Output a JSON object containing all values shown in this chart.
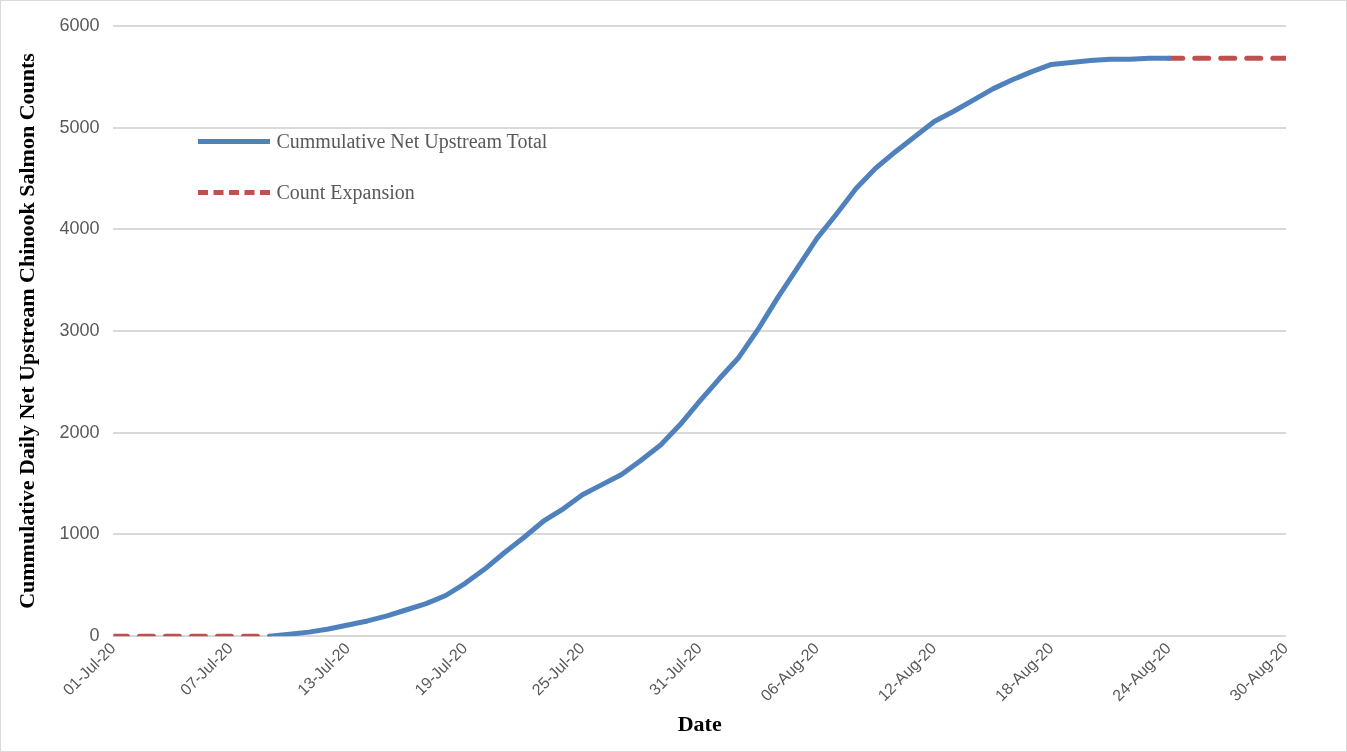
{
  "chart_data": {
    "type": "line",
    "xlabel": "Date",
    "ylabel": "Cummulative Daily Net Upstream Chinook Salmon Counts",
    "series": [
      {
        "name": "Cummulative Net Upstream Total",
        "color": "#4f81bd",
        "line_style": "solid",
        "x": [
          "--07-09",
          "--07-10",
          "--07-11",
          "--07-12",
          "--07-13",
          "--07-14",
          "--07-15",
          "--07-16",
          "--07-17",
          "--07-18",
          "--07-19",
          "--07-20",
          "--07-21",
          "--07-22",
          "--07-23",
          "--07-24",
          "--07-25",
          "--07-26",
          "--07-27",
          "--07-28",
          "--07-29",
          "--07-30",
          "--07-31",
          "--08-01",
          "--08-02",
          "--08-03",
          "--08-04",
          "--08-05",
          "--08-06",
          "--08-07",
          "--08-08",
          "--08-09",
          "--08-10",
          "--08-11",
          "--08-12",
          "--08-13",
          "--08-14",
          "--08-15",
          "--08-16",
          "--08-17",
          "--08-18",
          "--08-19",
          "--08-20",
          "--08-21",
          "--08-22",
          "--08-23",
          "--08-24"
        ],
        "values": [
          0,
          20,
          40,
          70,
          110,
          150,
          200,
          260,
          320,
          400,
          520,
          660,
          820,
          970,
          1130,
          1250,
          1390,
          1490,
          1590,
          1730,
          1880,
          2080,
          2310,
          2530,
          2740,
          3020,
          3330,
          3620,
          3910,
          4150,
          4400,
          4600,
          4760,
          4910,
          5060,
          5160,
          5270,
          5380,
          5470,
          5550,
          5620,
          5640,
          5660,
          5670,
          5670,
          5680,
          5680
        ]
      },
      {
        "name": "Count Expansion",
        "color": "#c0504d",
        "line_style": "dashed",
        "x": [
          "--07-01",
          "--07-09",
          "--07-20",
          "--08-24",
          "--08-30"
        ],
        "values": [
          0,
          0,
          null,
          5680,
          5680
        ]
      }
    ],
    "xlim": [
      "--07-01",
      "--08-30"
    ],
    "xticks": [
      {
        "value": "--07-01",
        "label": "01-Jul-20"
      },
      {
        "value": "--07-07",
        "label": "07-Jul-20"
      },
      {
        "value": "--07-13",
        "label": "13-Jul-20"
      },
      {
        "value": "--07-19",
        "label": "19-Jul-20"
      },
      {
        "value": "--07-25",
        "label": "25-Jul-20"
      },
      {
        "value": "--07-31",
        "label": "31-Jul-20"
      },
      {
        "value": "--08-06",
        "label": "06-Aug-20"
      },
      {
        "value": "--08-12",
        "label": "12-Aug-20"
      },
      {
        "value": "--08-18",
        "label": "18-Aug-20"
      },
      {
        "value": "--08-24",
        "label": "24-Aug-20"
      },
      {
        "value": "--08-30",
        "label": "30-Aug-20"
      }
    ],
    "ylim": [
      0,
      6000
    ],
    "yticks": [
      0,
      1000,
      2000,
      3000,
      4000,
      5000,
      6000
    ],
    "grid": "y",
    "legend": "top left",
    "marker": "none"
  }
}
